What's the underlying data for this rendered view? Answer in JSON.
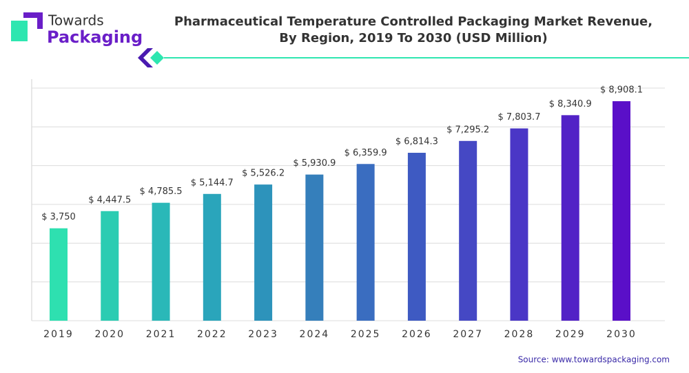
{
  "logo": {
    "line1": "Towards",
    "line2": "Packaging"
  },
  "chart_data": {
    "type": "bar",
    "title": [
      "Pharmaceutical Temperature Controlled Packaging Market Revenue,",
      "By Region, 2019 To 2030 (USD Million)"
    ],
    "categories": [
      "2019",
      "2020",
      "2021",
      "2022",
      "2023",
      "2024",
      "2025",
      "2026",
      "2027",
      "2028",
      "2029",
      "2030"
    ],
    "values": [
      3750,
      4447.5,
      4785.5,
      5144.7,
      5526.2,
      5930.9,
      6359.9,
      6814.3,
      7295.2,
      7803.7,
      8340.9,
      8908.1
    ],
    "value_labels": [
      "$ 3,750",
      "$ 4,447.5",
      "$ 4,785.5",
      "$ 5,144.7",
      "$ 5,526.2",
      "$ 5,930.9",
      "$ 6,359.9",
      "$ 6,814.3",
      "$ 7,295.2",
      "$ 7,803.7",
      "$ 8,340.9",
      "$ 8,908.1"
    ],
    "colors": [
      "#2ee0b0",
      "#2bccb2",
      "#2ab8b8",
      "#2aa5bb",
      "#2d93bb",
      "#357fbb",
      "#3a6dc0",
      "#3e5ac2",
      "#4548c4",
      "#4a36c6",
      "#5222c6",
      "#5a0fc8"
    ],
    "ylim": [
      0,
      9440
    ],
    "grid": true,
    "source": "Source: www.towardspackaging.com"
  }
}
